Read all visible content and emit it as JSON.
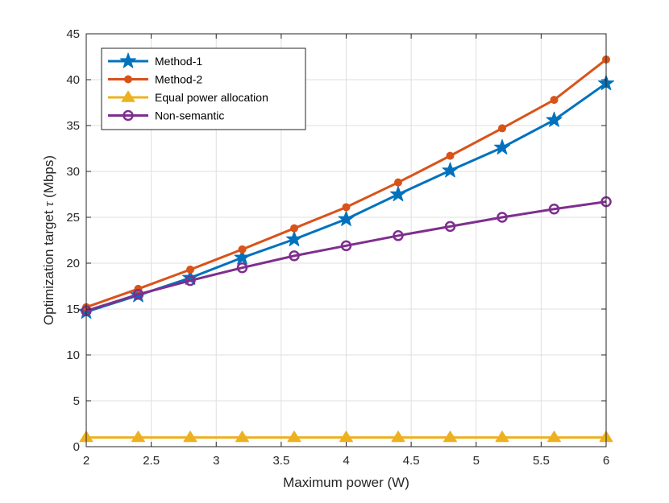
{
  "chart_data": {
    "type": "line",
    "title": "",
    "xlabel": "Maximum power (W)",
    "ylabel": "Optimization target τ (Mbps)",
    "ylabel_prefix": "Optimization target ",
    "ylabel_symbol": "τ",
    "ylabel_suffix": " (Mbps)",
    "xlim": [
      2,
      6
    ],
    "ylim": [
      0,
      45
    ],
    "xticks": [
      2,
      2.5,
      3,
      3.5,
      4,
      4.5,
      5,
      5.5,
      6
    ],
    "xtick_labels": [
      "2",
      "2.5",
      "3",
      "3.5",
      "4",
      "4.5",
      "5",
      "5.5",
      "6"
    ],
    "yticks": [
      0,
      5,
      10,
      15,
      20,
      25,
      30,
      35,
      40,
      45
    ],
    "ytick_labels": [
      "0",
      "5",
      "10",
      "15",
      "20",
      "25",
      "30",
      "35",
      "40",
      "45"
    ],
    "grid": true,
    "legend_position": "top-left",
    "x": [
      2,
      2.4,
      2.8,
      3.2,
      3.6,
      4,
      4.4,
      4.8,
      5.2,
      5.6,
      6
    ],
    "series": [
      {
        "name": "Method-1",
        "color": "#0072BD",
        "marker": "star",
        "values": [
          14.7,
          16.5,
          18.4,
          20.6,
          22.6,
          24.8,
          27.5,
          30.1,
          32.6,
          35.6,
          39.6
        ]
      },
      {
        "name": "Method-2",
        "color": "#D95319",
        "marker": "dot",
        "values": [
          15.2,
          17.2,
          19.3,
          21.5,
          23.8,
          26.1,
          28.8,
          31.7,
          34.7,
          37.8,
          42.2
        ]
      },
      {
        "name": "Equal power allocation",
        "color": "#EDB120",
        "marker": "triangle",
        "values": [
          1.0,
          1.0,
          1.0,
          1.0,
          1.0,
          1.0,
          1.0,
          1.0,
          1.0,
          1.0,
          1.0
        ]
      },
      {
        "name": "Non-semantic",
        "color": "#7E2F8E",
        "marker": "circle",
        "values": [
          14.8,
          16.6,
          18.1,
          19.5,
          20.8,
          21.9,
          23.0,
          24.0,
          25.0,
          25.9,
          26.7
        ]
      }
    ]
  }
}
